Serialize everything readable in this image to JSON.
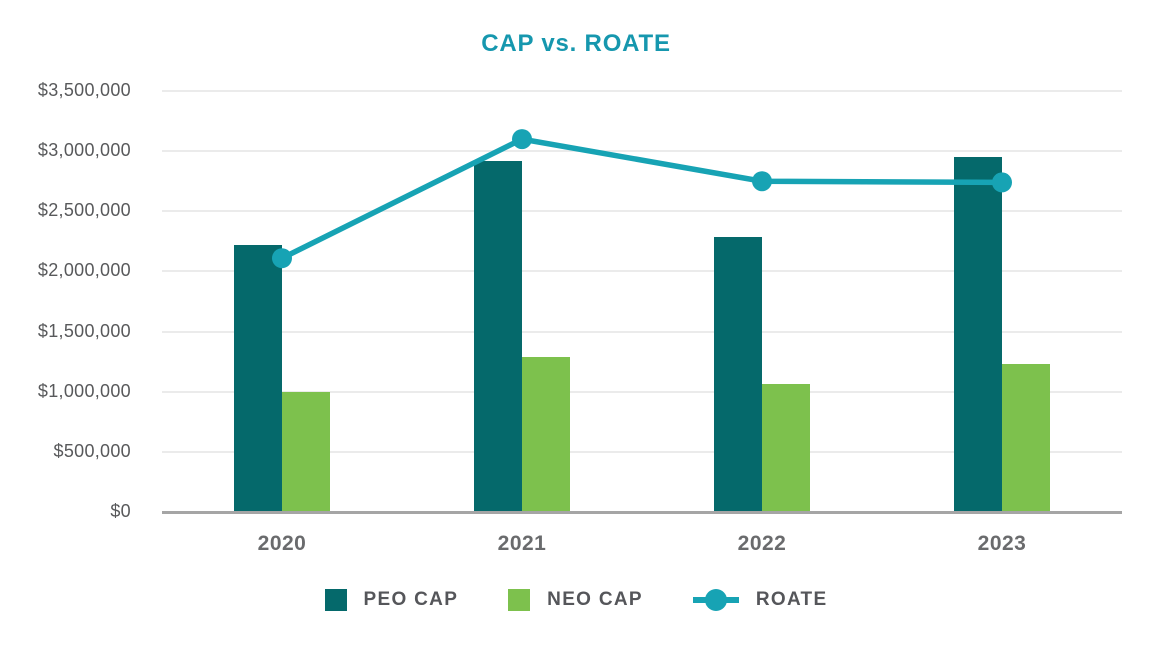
{
  "chart_data": {
    "type": "bar+line",
    "title": "CAP vs. ROATE",
    "categories": [
      "2020",
      "2021",
      "2022",
      "2023"
    ],
    "series": [
      {
        "name": "PEO CAP",
        "type": "bar",
        "color": "#05696B",
        "values": [
          2220000,
          2920000,
          2290000,
          2950000
        ]
      },
      {
        "name": "NEO CAP",
        "type": "bar",
        "color": "#7DC14D",
        "values": [
          1000000,
          1290000,
          1060000,
          1230000
        ]
      },
      {
        "name": "ROATE",
        "type": "line",
        "color": "#17A3B4",
        "values": [
          2110000,
          3100000,
          2750000,
          2740000
        ]
      }
    ],
    "y_axis": {
      "min": 0,
      "max": 3500000,
      "step": 500000,
      "tick_labels": [
        "$0",
        "$500,000",
        "$1,000,000",
        "$1,500,000",
        "$2,000,000",
        "$2,500,000",
        "$3,000,000",
        "$3,500,000"
      ]
    },
    "x_axis": {
      "labels": [
        "2020",
        "2021",
        "2022",
        "2023"
      ]
    },
    "grid": true,
    "legend_position": "bottom",
    "ylim": [
      0,
      3500000
    ],
    "colors": {
      "title": "#1697AE",
      "y_tick_label": "#58595B",
      "x_tick_label": "#6A6B6D",
      "legend_text": "#55565A",
      "gridline": "#EBEBEB",
      "baseline": "#A5A5A5"
    }
  }
}
